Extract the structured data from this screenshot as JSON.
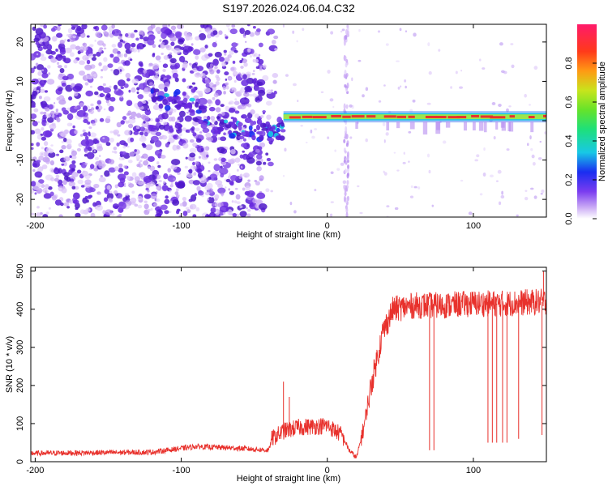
{
  "colors": {
    "frame": "#000000",
    "snr_line": "#e8312c",
    "dot_dark": "#5b1fd6",
    "dot_light": "#c9a8f5",
    "band_core": "#e8312c",
    "band_mid": "#9ee44c",
    "band_edge": "#2b6cf0"
  },
  "chart_data": [
    {
      "type": "heatmap",
      "title": "S197.2026.024.06.04.C32",
      "xlabel": "Height of straight line (km)",
      "ylabel": "Frequency (Hz)",
      "xlim": [
        -203,
        150
      ],
      "ylim": [
        -24.5,
        24.5
      ],
      "xticks": [
        -200,
        -100,
        0,
        100
      ],
      "yticks": [
        -20,
        -10,
        0,
        10,
        20
      ],
      "colorbar": {
        "label": "Normalized spectral amplitude",
        "range": [
          0.0,
          1.0
        ],
        "ticks": [
          "0.0",
          "0.2",
          "0.4",
          "0.6",
          "0.8"
        ],
        "tick_values": [
          0.0,
          0.2,
          0.4,
          0.6,
          0.8
        ]
      },
      "features": {
        "dense_scatter_region_km": [
          -203,
          -45
        ],
        "descending_trend_points": [
          [
            -120,
            6
          ],
          [
            -100,
            5
          ],
          [
            -80,
            0
          ],
          [
            -60,
            -2
          ],
          [
            -40,
            -3
          ],
          [
            -30,
            -2
          ]
        ],
        "stable_band_km": [
          -30,
          150
        ],
        "stable_band_frequency_hz": 1,
        "vertical_stripe_km": 13
      }
    },
    {
      "type": "line",
      "xlabel": "Height of straight line (km)",
      "ylabel": "SNR (10 * v/v)",
      "xlim": [
        -203,
        150
      ],
      "ylim": [
        0,
        510
      ],
      "xticks": [
        -200,
        -100,
        0,
        100
      ],
      "yticks": [
        0,
        100,
        200,
        300,
        400,
        500
      ],
      "profile": [
        [
          -203,
          22
        ],
        [
          -120,
          25
        ],
        [
          -90,
          40
        ],
        [
          -60,
          35
        ],
        [
          -40,
          30
        ],
        [
          -38,
          60
        ],
        [
          -30,
          80
        ],
        [
          -20,
          90
        ],
        [
          0,
          95
        ],
        [
          10,
          70
        ],
        [
          15,
          30
        ],
        [
          20,
          10
        ],
        [
          25,
          90
        ],
        [
          30,
          200
        ],
        [
          38,
          340
        ],
        [
          45,
          400
        ],
        [
          60,
          410
        ],
        [
          80,
          410
        ],
        [
          100,
          415
        ],
        [
          120,
          415
        ],
        [
          150,
          420
        ]
      ],
      "spikes": [
        [
          -30,
          210
        ],
        [
          -26,
          170
        ],
        [
          70,
          30
        ],
        [
          73,
          30
        ],
        [
          110,
          50
        ],
        [
          113,
          50
        ],
        [
          116,
          50
        ],
        [
          120,
          50
        ],
        [
          123,
          50
        ],
        [
          131,
          60
        ],
        [
          147,
          70
        ],
        [
          148,
          500
        ]
      ]
    }
  ]
}
